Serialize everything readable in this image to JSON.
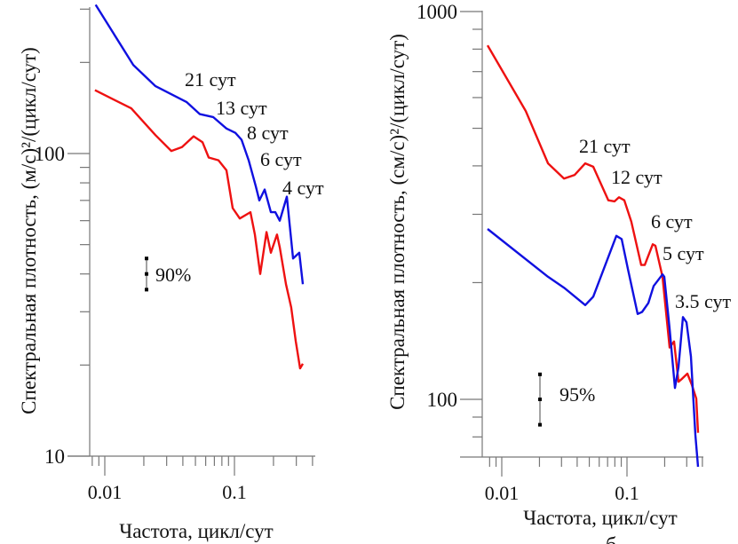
{
  "chart_data": [
    {
      "type": "line",
      "xlabel": "Частота, цикл/сут",
      "ylabel": "Спектральная плотность, (м/с)²/(цикл/сут)",
      "xscale": "log",
      "yscale": "log",
      "xlim": [
        0.0077,
        0.42
      ],
      "ylim": [
        10,
        300
      ],
      "xtick_labels": [
        "0.01",
        "0.1"
      ],
      "ytick_labels": [
        "10",
        "100"
      ],
      "grid": false,
      "colors": {
        "blue": "#1010e0",
        "red": "#ee1111"
      },
      "series": [
        {
          "color": "blue",
          "points": [
            [
              0.0085,
              310
            ],
            [
              0.0166,
              196
            ],
            [
              0.0246,
              167
            ],
            [
              0.0427,
              148
            ],
            [
              0.0541,
              135
            ],
            [
              0.0685,
              132
            ],
            [
              0.0867,
              121
            ],
            [
              0.1016,
              117
            ],
            [
              0.1135,
              111
            ],
            [
              0.1288,
              95
            ],
            [
              0.146,
              78
            ],
            [
              0.1556,
              70
            ],
            [
              0.171,
              76
            ],
            [
              0.191,
              64
            ],
            [
              0.2066,
              64
            ],
            [
              0.2235,
              60
            ],
            [
              0.2535,
              72
            ],
            [
              0.283,
              45
            ],
            [
              0.316,
              47
            ],
            [
              0.337,
              37
            ]
          ]
        },
        {
          "color": "red",
          "points": [
            [
              0.0084,
              162
            ],
            [
              0.016,
              141
            ],
            [
              0.0246,
              115
            ],
            [
              0.0326,
              102
            ],
            [
              0.0394,
              105
            ],
            [
              0.0484,
              114
            ],
            [
              0.0567,
              109
            ],
            [
              0.0633,
              97
            ],
            [
              0.0753,
              95
            ],
            [
              0.0867,
              88
            ],
            [
              0.0969,
              66
            ],
            [
              0.1099,
              61
            ],
            [
              0.1328,
              64
            ],
            [
              0.1437,
              54
            ],
            [
              0.158,
              40
            ],
            [
              0.1766,
              55
            ],
            [
              0.191,
              47
            ],
            [
              0.213,
              54
            ],
            [
              0.2235,
              49
            ],
            [
              0.2496,
              37
            ],
            [
              0.274,
              31
            ],
            [
              0.297,
              24
            ],
            [
              0.321,
              19.5
            ],
            [
              0.337,
              20.2
            ]
          ]
        }
      ],
      "annotations": [
        "21 сут",
        "13 сут",
        "8 сут",
        "6 сут",
        "4 сут"
      ],
      "confidence": {
        "label": "90%",
        "value": 40,
        "low": 35.5,
        "high": 45
      }
    },
    {
      "type": "line",
      "xlabel": "Частота, цикл/сут",
      "ylabel": "Спектральная плотность, (см/с)²/(цикл/сут)",
      "xscale": "log",
      "yscale": "log",
      "xlim": [
        0.0066,
        0.41
      ],
      "ylim": [
        71,
        1000
      ],
      "xtick_labels": [
        "0.01",
        "0.1"
      ],
      "ytick_labels": [
        "100",
        "1000"
      ],
      "grid": false,
      "colors": {
        "blue": "#1010e0",
        "red": "#ee1111"
      },
      "series": [
        {
          "color": "red",
          "points": [
            [
              0.0077,
              818
            ],
            [
              0.01555,
              554
            ],
            [
              0.0234,
              406
            ],
            [
              0.0314,
              371
            ],
            [
              0.0382,
              379
            ],
            [
              0.0464,
              406
            ],
            [
              0.0538,
              398
            ],
            [
              0.071,
              326
            ],
            [
              0.0796,
              324
            ],
            [
              0.0863,
              332
            ],
            [
              0.0952,
              326
            ],
            [
              0.1084,
              287
            ],
            [
              0.1298,
              222
            ],
            [
              0.1386,
              222
            ],
            [
              0.1606,
              251
            ],
            [
              0.1686,
              249
            ],
            [
              0.1922,
              207
            ],
            [
              0.219,
              136
            ],
            [
              0.2377,
              141
            ],
            [
              0.2578,
              111
            ],
            [
              0.2752,
              113
            ],
            [
              0.3034,
              116.5
            ],
            [
              0.3296,
              109
            ],
            [
              0.3574,
              100.5
            ],
            [
              0.369,
              82
            ]
          ]
        },
        {
          "color": "blue",
          "points": [
            [
              0.0077,
              275
            ],
            [
              0.0234,
              207
            ],
            [
              0.0314,
              194
            ],
            [
              0.0464,
              175
            ],
            [
              0.0538,
              184
            ],
            [
              0.0822,
              264
            ],
            [
              0.0906,
              259
            ],
            [
              0.1017,
              217
            ],
            [
              0.1217,
              166
            ],
            [
              0.1321,
              168
            ],
            [
              0.148,
              177
            ],
            [
              0.1633,
              196
            ],
            [
              0.1922,
              210
            ],
            [
              0.1986,
              207
            ],
            [
              0.219,
              152
            ],
            [
              0.2415,
              107
            ],
            [
              0.2578,
              121
            ],
            [
              0.28,
              163
            ],
            [
              0.2987,
              158
            ],
            [
              0.3243,
              129
            ],
            [
              0.3516,
              81
            ],
            [
              0.369,
              67
            ]
          ]
        }
      ],
      "annotations": [
        "21 сут",
        "12 сут",
        "6 сут",
        "5 сут",
        "3.5 сут"
      ],
      "confidence": {
        "label": "95%",
        "value": 100,
        "low": 86,
        "high": 116
      },
      "footer_mark": "б"
    }
  ]
}
